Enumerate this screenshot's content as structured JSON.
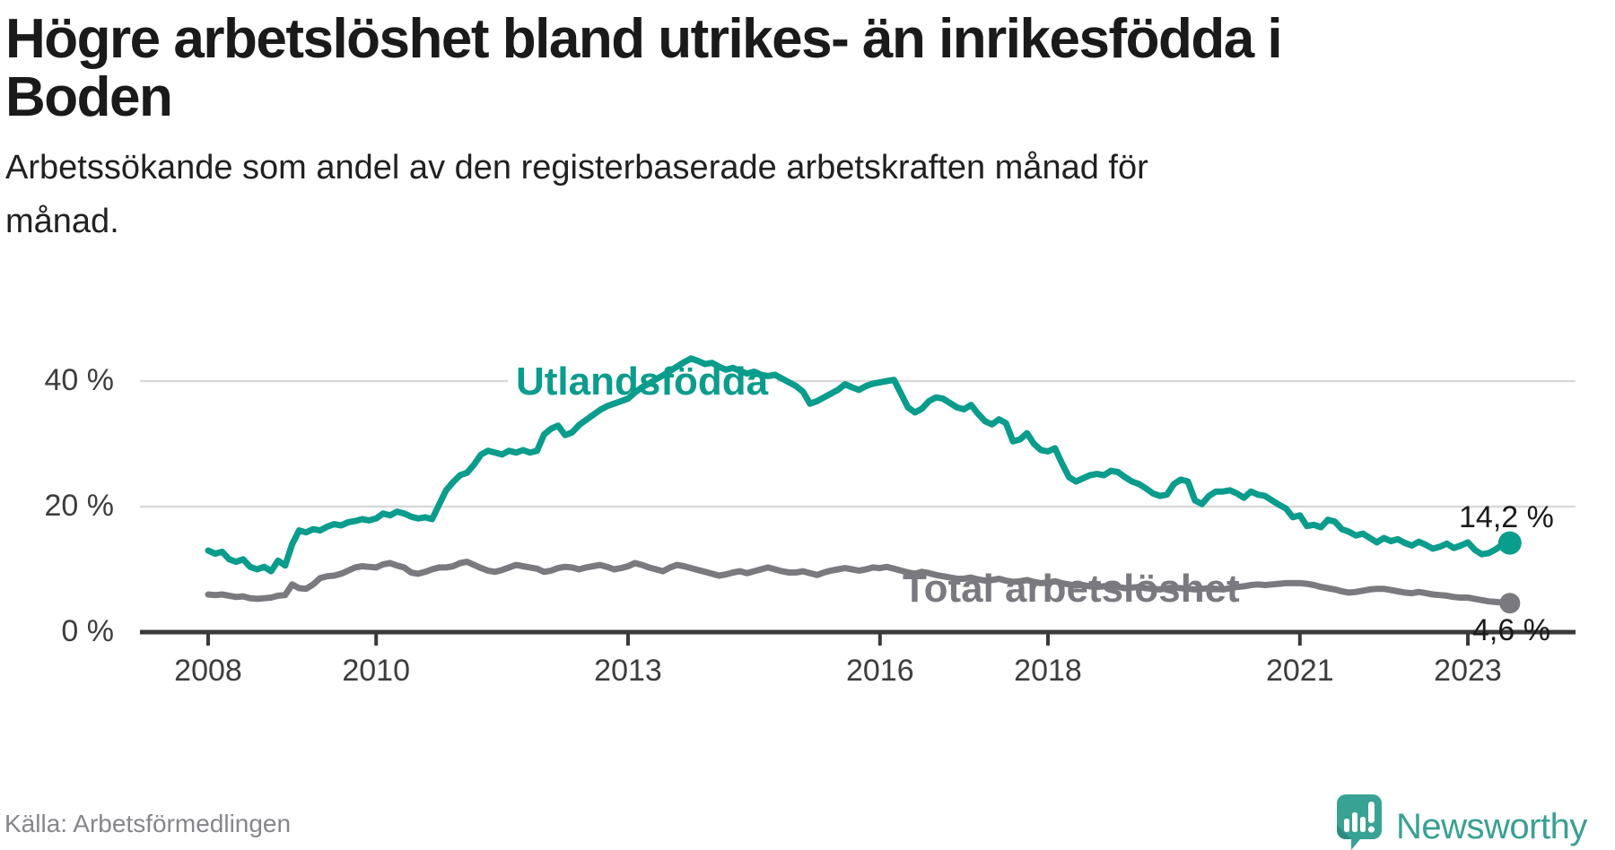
{
  "title_lines": [
    "Högre arbetslöshet bland utrikes- än inrikesfödda i",
    "Boden"
  ],
  "subtitle_lines": [
    "Arbetssökande som andel av den registerbaserade arbetskraften månad för",
    "månad."
  ],
  "source": "Källa: Arbetsförmedlingen",
  "branding": {
    "logo_text": "Newsworthy",
    "logo_color": "#38a294",
    "logo_text_color": "#3aa093"
  },
  "colors": {
    "title": "#1a1a1a",
    "axis_text": "#3d3d3d",
    "gridline": "#d9d9d9",
    "axis_line": "#3a3a3a"
  },
  "chart_data": {
    "type": "line",
    "title": "Högre arbetslöshet bland utrikes- än inrikesfödda i Boden",
    "subtitle": "Arbetssökande som andel av den registerbaserade arbetskraften månad för månad.",
    "source": "Källa: Arbetsförmedlingen",
    "freq": "monthly",
    "start": "2008-01",
    "end": "2023-07",
    "ylim": [
      0,
      45
    ],
    "grid": "horizontal",
    "legend_position": "inline-labels",
    "y_ticks": [
      {
        "value": 40,
        "label": "40 %"
      },
      {
        "value": 20,
        "label": "20 %"
      },
      {
        "value": 0,
        "label": "0 %"
      }
    ],
    "x_ticks": [
      {
        "year": 2008,
        "label": "2008"
      },
      {
        "year": 2010,
        "label": "2010"
      },
      {
        "year": 2013,
        "label": "2013"
      },
      {
        "year": 2016,
        "label": "2016"
      },
      {
        "year": 2018,
        "label": "2018"
      },
      {
        "year": 2021,
        "label": "2021"
      },
      {
        "year": 2023,
        "label": "2023"
      }
    ],
    "series": [
      {
        "name": "Utlandsfödda",
        "color": "#0a9c8c",
        "end_label": "14,2 %",
        "end_value": 14.2,
        "values": [
          13.0,
          12.5,
          12.8,
          11.6,
          11.2,
          11.6,
          10.4,
          10.0,
          10.4,
          9.7,
          11.4,
          10.6,
          14.0,
          16.2,
          15.9,
          16.4,
          16.2,
          16.8,
          17.2,
          17.0,
          17.5,
          17.7,
          18.0,
          17.8,
          18.1,
          18.9,
          18.6,
          19.2,
          18.9,
          18.4,
          18.1,
          18.3,
          18.0,
          20.3,
          22.6,
          23.9,
          25.0,
          25.4,
          26.7,
          28.3,
          28.9,
          28.6,
          28.3,
          28.9,
          28.6,
          29.0,
          28.6,
          28.9,
          31.5,
          32.4,
          32.9,
          31.4,
          31.8,
          33.0,
          33.8,
          34.6,
          35.4,
          36.0,
          36.4,
          36.8,
          37.2,
          38.2,
          39.0,
          39.6,
          40.3,
          40.9,
          41.6,
          42.3,
          43.0,
          43.6,
          43.2,
          42.7,
          42.9,
          42.3,
          41.8,
          42.1,
          41.6,
          41.2,
          41.5,
          41.0,
          40.8,
          41.0,
          40.4,
          39.8,
          39.2,
          38.3,
          36.4,
          36.8,
          37.4,
          38.0,
          38.6,
          39.5,
          39.0,
          38.6,
          39.2,
          39.6,
          39.8,
          40.0,
          40.2,
          38.0,
          35.8,
          35.0,
          35.6,
          36.8,
          37.4,
          37.2,
          36.5,
          35.8,
          35.5,
          36.2,
          34.8,
          33.6,
          33.1,
          33.9,
          33.3,
          30.4,
          30.7,
          31.7,
          30.0,
          29.0,
          28.8,
          29.3,
          26.9,
          24.7,
          24.0,
          24.5,
          25.0,
          25.2,
          25.0,
          25.7,
          25.5,
          24.7,
          24.0,
          23.6,
          22.9,
          22.1,
          21.7,
          21.9,
          23.6,
          24.3,
          24.0,
          21.0,
          20.4,
          21.7,
          22.4,
          22.4,
          22.6,
          22.1,
          21.4,
          22.4,
          21.9,
          21.7,
          21.0,
          20.3,
          19.7,
          18.3,
          18.6,
          16.9,
          17.1,
          16.7,
          17.9,
          17.6,
          16.4,
          16.0,
          15.4,
          15.7,
          15.0,
          14.3,
          15.0,
          14.5,
          14.8,
          14.2,
          13.8,
          14.4,
          13.9,
          13.3,
          13.6,
          14.1,
          13.4,
          13.8,
          14.3,
          13.1,
          12.4,
          12.6,
          13.2,
          14.0,
          14.2
        ]
      },
      {
        "name": "Total arbetslöshet",
        "color": "#7b7980",
        "end_label": "4,6 %",
        "end_value": 4.6,
        "values": [
          6.0,
          5.9,
          6.0,
          5.8,
          5.6,
          5.7,
          5.4,
          5.3,
          5.4,
          5.5,
          5.8,
          5.9,
          7.6,
          7.0,
          6.9,
          7.6,
          8.6,
          8.9,
          9.0,
          9.3,
          9.8,
          10.3,
          10.5,
          10.4,
          10.3,
          10.8,
          11.0,
          10.6,
          10.3,
          9.5,
          9.3,
          9.6,
          10.0,
          10.3,
          10.3,
          10.5,
          11.0,
          11.2,
          10.7,
          10.2,
          9.8,
          9.6,
          9.9,
          10.3,
          10.7,
          10.5,
          10.3,
          10.1,
          9.6,
          9.8,
          10.2,
          10.4,
          10.3,
          10.0,
          10.3,
          10.5,
          10.7,
          10.4,
          10.0,
          10.2,
          10.5,
          11.0,
          10.7,
          10.3,
          10.0,
          9.7,
          10.3,
          10.7,
          10.5,
          10.2,
          9.9,
          9.6,
          9.3,
          9.0,
          9.2,
          9.5,
          9.7,
          9.4,
          9.7,
          10.0,
          10.3,
          10.0,
          9.7,
          9.5,
          9.5,
          9.7,
          9.4,
          9.1,
          9.5,
          9.8,
          10.0,
          10.2,
          10.0,
          9.8,
          10.0,
          10.3,
          10.2,
          10.4,
          10.1,
          9.8,
          9.5,
          9.3,
          9.6,
          9.4,
          9.1,
          8.9,
          8.7,
          8.5,
          8.5,
          8.7,
          8.4,
          8.2,
          8.3,
          8.5,
          8.2,
          8.0,
          8.1,
          8.3,
          8.0,
          7.8,
          7.9,
          8.1,
          7.8,
          7.6,
          7.4,
          7.5,
          7.3,
          7.2,
          7.3,
          7.4,
          7.2,
          7.0,
          7.1,
          7.2,
          7.0,
          6.9,
          6.8,
          7.0,
          7.1,
          7.0,
          6.9,
          6.8,
          6.9,
          7.0,
          6.9,
          6.8,
          7.0,
          7.2,
          7.3,
          7.5,
          7.6,
          7.5,
          7.6,
          7.7,
          7.8,
          7.8,
          7.8,
          7.7,
          7.5,
          7.2,
          7.0,
          6.8,
          6.5,
          6.3,
          6.4,
          6.6,
          6.8,
          6.9,
          6.9,
          6.7,
          6.5,
          6.3,
          6.2,
          6.4,
          6.2,
          6.0,
          5.9,
          5.8,
          5.6,
          5.5,
          5.5,
          5.3,
          5.1,
          4.9,
          4.8,
          4.7,
          4.6
        ]
      }
    ]
  }
}
